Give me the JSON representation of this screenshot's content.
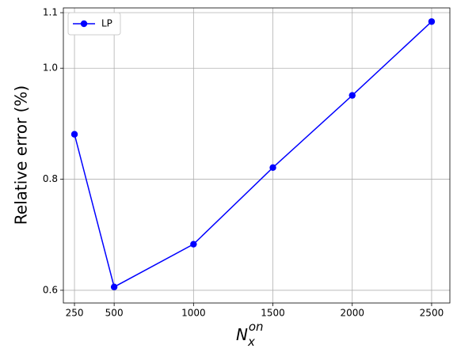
{
  "chart_data": {
    "type": "line",
    "x_label": {
      "base": "N",
      "sub": "x",
      "sup": "on"
    },
    "y_label": "Relative error (%)",
    "x": [
      250,
      500,
      1000,
      1500,
      2000,
      2500
    ],
    "series": [
      {
        "name": "LP",
        "color": "#0000ff",
        "values": [
          0.881,
          0.606,
          0.683,
          0.821,
          0.951,
          1.084
        ]
      }
    ],
    "xlim": [
      180,
      2615
    ],
    "ylim": [
      0.5771,
      1.1086
    ],
    "xticks": [
      250,
      500,
      1000,
      1500,
      2000,
      2500
    ],
    "yticks": [
      0.6,
      0.8,
      {
        "value": 1,
        "label": "1.0"
      },
      1.1
    ],
    "grid": true,
    "legend": "upper left"
  }
}
